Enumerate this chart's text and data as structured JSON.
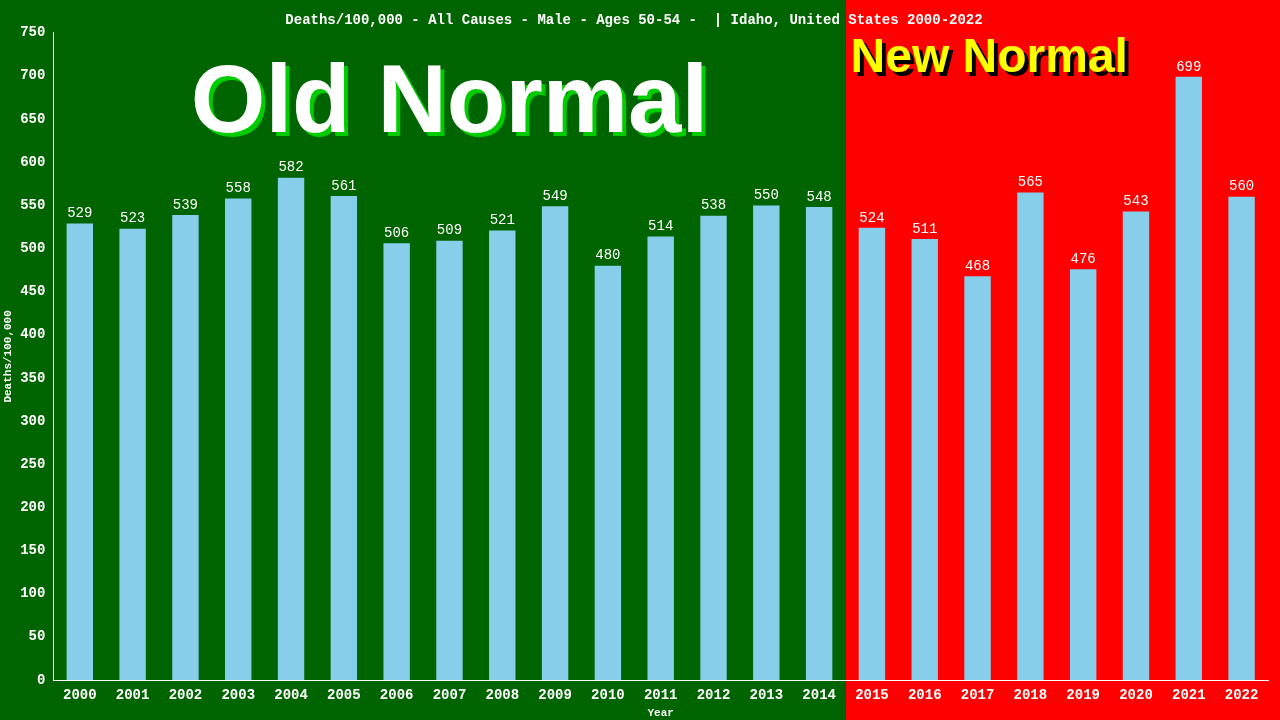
{
  "chart_data": {
    "type": "bar",
    "title": "Deaths/100,000 - All Causes - Male - Ages 50-54 -  | Idaho, United States 2000-2022",
    "xlabel": "Year",
    "ylabel": "Deaths/100,000",
    "categories": [
      "2000",
      "2001",
      "2002",
      "2003",
      "2004",
      "2005",
      "2006",
      "2007",
      "2008",
      "2009",
      "2010",
      "2011",
      "2012",
      "2013",
      "2014",
      "2015",
      "2016",
      "2017",
      "2018",
      "2019",
      "2020",
      "2021",
      "2022"
    ],
    "values": [
      529,
      523,
      539,
      558,
      582,
      561,
      506,
      509,
      521,
      549,
      480,
      514,
      538,
      550,
      548,
      524,
      511,
      468,
      565,
      476,
      543,
      699,
      560
    ],
    "color": "#87ceeb",
    "ylim": [
      0,
      750
    ],
    "yticks": [
      0,
      50,
      100,
      150,
      200,
      250,
      300,
      350,
      400,
      450,
      500,
      550,
      600,
      650,
      700,
      750
    ],
    "grid": false,
    "legend": false,
    "data_labels": true,
    "bands": [
      {
        "axis": "x",
        "from": "2000",
        "to": "2014",
        "label": "Old Normal",
        "color": "#006400"
      },
      {
        "axis": "x",
        "from": "2015",
        "to": "2022",
        "label": "New Normal",
        "color": "#ff0000"
      }
    ]
  }
}
